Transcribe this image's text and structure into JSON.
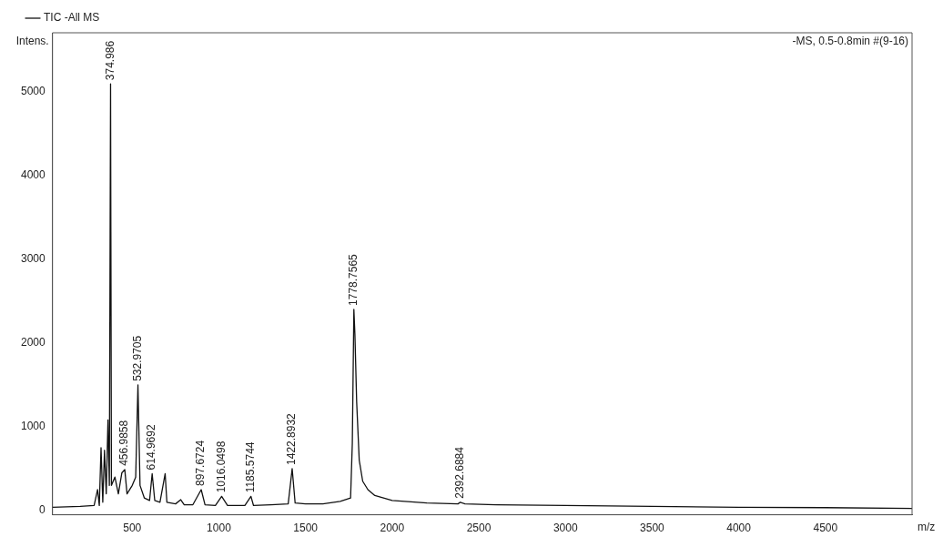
{
  "chart_data": {
    "type": "line",
    "xlabel": "m/z",
    "ylabel": "Intens.",
    "x": [
      40,
      200,
      280,
      300,
      310,
      320,
      330,
      340,
      350,
      360,
      368,
      375,
      380,
      400,
      420,
      440,
      457,
      470,
      500,
      520,
      533,
      545,
      570,
      600,
      615,
      630,
      660,
      690,
      700,
      750,
      780,
      800,
      850,
      898,
      920,
      980,
      1016,
      1050,
      1100,
      1150,
      1185,
      1200,
      1300,
      1400,
      1423,
      1440,
      1500,
      1600,
      1700,
      1760,
      1770,
      1779,
      1785,
      1795,
      1810,
      1830,
      1860,
      1900,
      2000,
      2200,
      2380,
      2393,
      2420,
      2600,
      3000,
      3500,
      4000,
      4500,
      5000
    ],
    "series": [
      {
        "name": "TIC -All MS",
        "color": "#111111",
        "values": [
          40,
          50,
          60,
          250,
          60,
          750,
          100,
          720,
          200,
          1080,
          300,
          5090,
          300,
          400,
          200,
          450,
          490,
          200,
          300,
          400,
          1500,
          300,
          150,
          120,
          440,
          120,
          100,
          440,
          100,
          80,
          130,
          70,
          70,
          250,
          70,
          60,
          170,
          60,
          60,
          60,
          170,
          60,
          70,
          80,
          500,
          90,
          80,
          80,
          110,
          150,
          800,
          2400,
          2100,
          1300,
          600,
          350,
          250,
          180,
          120,
          90,
          80,
          100,
          80,
          70,
          60,
          50,
          40,
          35,
          25
        ]
      }
    ],
    "xlim": [
      40,
      5000
    ],
    "xticks": [
      500,
      1000,
      1500,
      2000,
      2500,
      3000,
      3500,
      4000,
      4500
    ],
    "ylim": [
      -50,
      5700
    ],
    "yticks": [
      0,
      1000,
      2000,
      3000,
      4000,
      5000
    ],
    "grid": false,
    "legend": "top left",
    "marker": "none",
    "line_style": "solid",
    "annotations": [
      {
        "text": "374.986",
        "x": 375,
        "y": 5090
      },
      {
        "text": "456.9858",
        "x": 457,
        "y": 490
      },
      {
        "text": "532.9705",
        "x": 533,
        "y": 1500
      },
      {
        "text": "614.9692",
        "x": 615,
        "y": 440
      },
      {
        "text": "897.6724",
        "x": 898,
        "y": 250
      },
      {
        "text": "1016.0498",
        "x": 1016,
        "y": 170
      },
      {
        "text": "1185.5744",
        "x": 1185,
        "y": 170
      },
      {
        "text": "1422.8932",
        "x": 1423,
        "y": 500
      },
      {
        "text": "1778.7565",
        "x": 1779,
        "y": 2400
      },
      {
        "text": "2392.6884",
        "x": 2393,
        "y": 100
      },
      "-MS, 0.5-0.8min #(9-16)"
    ]
  }
}
